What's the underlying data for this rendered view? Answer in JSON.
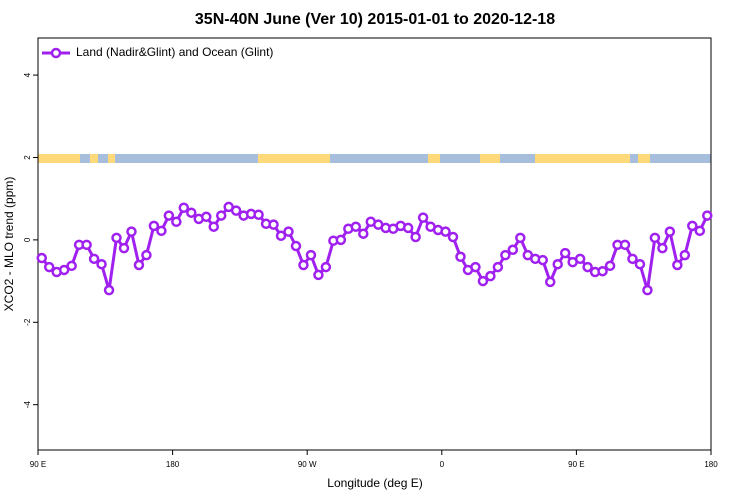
{
  "chart_data": {
    "type": "line",
    "title": "35N-40N June (Ver 10)   2015-01-01 to 2020-12-18",
    "x_label": "Longitude (deg E)",
    "y_label": "XCO2 - MLO trend (ppm)",
    "x": [
      92.5,
      97.5,
      102.5,
      107.5,
      112.5,
      117.5,
      122.5,
      127.5,
      132.5,
      137.5,
      142.5,
      147.5,
      152.5,
      157.5,
      162.5,
      167.5,
      172.5,
      177.5,
      182.5,
      187.5,
      192.5,
      197.5,
      202.5,
      207.5,
      212.5,
      217.5,
      222.5,
      227.5,
      232.5,
      237.5,
      242.5,
      247.5,
      252.5,
      257.5,
      262.5,
      267.5,
      272.5,
      277.5,
      282.5,
      287.5,
      292.5,
      297.5,
      302.5,
      307.5,
      312.5,
      317.5,
      322.5,
      327.5,
      332.5,
      337.5,
      342.5,
      347.5,
      352.5,
      357.5,
      362.5,
      367.5,
      372.5,
      377.5,
      382.5,
      387.5,
      392.5,
      397.5,
      402.5,
      407.5,
      412.5,
      417.5,
      422.5,
      427.5,
      432.5,
      437.5,
      442.5,
      447.5,
      452.5,
      457.5,
      462.5,
      467.5,
      472.5,
      477.5,
      482.5,
      487.5,
      492.5,
      497.5,
      502.5,
      507.5,
      512.5,
      517.5,
      522.5,
      527.5,
      532.5,
      537.5
    ],
    "series": [
      {
        "name": "Land (Nadir&Glint) and Ocean (Glint)",
        "color": "#a020f0",
        "values": [
          -0.44,
          -0.66,
          -0.78,
          -0.73,
          -0.63,
          -0.12,
          -0.12,
          -0.46,
          -0.59,
          -1.22,
          0.05,
          -0.2,
          0.2,
          -0.61,
          -0.37,
          0.34,
          0.22,
          0.59,
          0.44,
          0.78,
          0.66,
          0.51,
          0.56,
          0.32,
          0.59,
          0.8,
          0.71,
          0.59,
          0.63,
          0.61,
          0.39,
          0.37,
          0.1,
          0.2,
          -0.15,
          -0.61,
          -0.37,
          -0.85,
          -0.66,
          -0.02,
          0,
          0.27,
          0.32,
          0.15,
          0.44,
          0.37,
          0.29,
          0.27,
          0.34,
          0.29,
          0.07,
          0.54,
          0.32,
          0.24,
          0.2,
          0.07,
          -0.41,
          -0.73,
          -0.66,
          -1.0,
          -0.88,
          -0.66,
          -0.37,
          -0.24,
          0.05,
          -0.37,
          -0.46,
          -0.49,
          -1.02,
          -0.59,
          -0.32,
          -0.54,
          -0.46,
          -0.66,
          -0.78,
          -0.76,
          -0.63,
          -0.12,
          -0.12,
          -0.46,
          -0.59,
          -1.22,
          0.05,
          -0.2,
          0.2,
          -0.61,
          -0.37,
          0.34,
          0.22,
          0.59
        ]
      }
    ],
    "xlim": [
      90,
      540
    ],
    "xticks": [
      {
        "value": 90,
        "label": "90 E"
      },
      180,
      {
        "value": 270,
        "label": "90 W"
      },
      {
        "value": 360,
        "label": "0"
      },
      {
        "value": 450,
        "label": "90 E"
      },
      {
        "value": 540,
        "label": "180"
      }
    ],
    "ylim": [
      -5.1,
      4.9
    ],
    "yticks": [
      4,
      2,
      0,
      -2,
      -4
    ],
    "legend": "top-left"
  }
}
